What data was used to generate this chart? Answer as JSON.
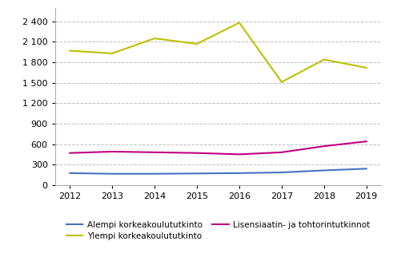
{
  "years": [
    2012,
    2013,
    2014,
    2015,
    2016,
    2017,
    2018,
    2019
  ],
  "alempi": [
    175,
    165,
    165,
    170,
    175,
    185,
    215,
    240
  ],
  "ylempi": [
    1970,
    1930,
    2150,
    2070,
    2380,
    1510,
    1840,
    1720
  ],
  "lisensiaatti": [
    470,
    490,
    480,
    470,
    450,
    480,
    570,
    640
  ],
  "alempi_color": "#4472C4",
  "ylempi_color": "#BFBF00",
  "lisensiaatti_color": "#C00080",
  "alempi_label": "Alempi korkeakoulututkinto",
  "ylempi_label": "Ylempi korkeakoulututkinto",
  "lisensiaatti_label": "Lisensiaatin- ja tohtorintutkinnot",
  "ylim": [
    0,
    2600
  ],
  "yticks": [
    0,
    300,
    600,
    900,
    1200,
    1500,
    1800,
    2100,
    2400
  ],
  "background_color": "#ffffff",
  "grid_color": "#bebebe",
  "line_width": 1.5
}
